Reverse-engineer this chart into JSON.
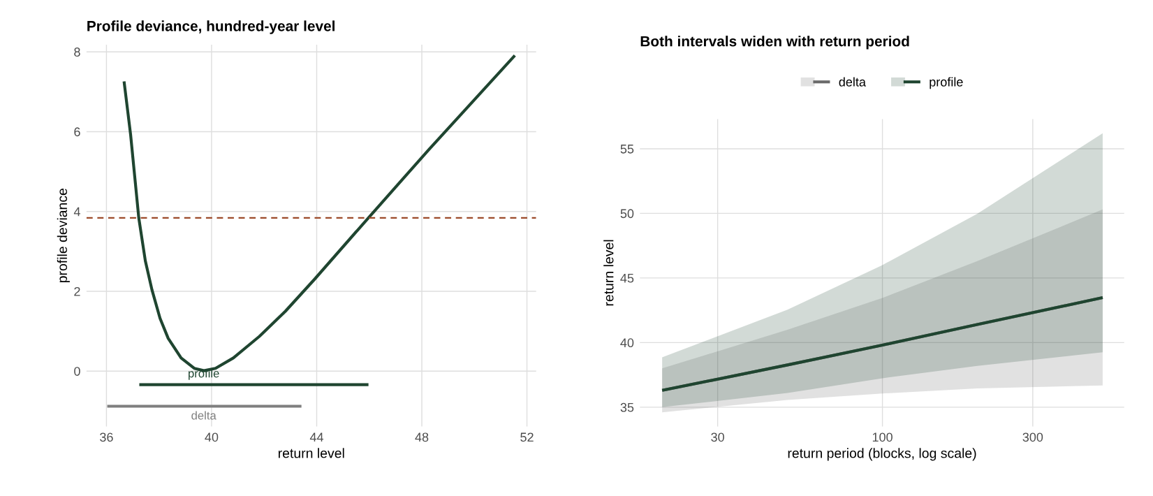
{
  "chart_data": [
    {
      "type": "line",
      "title": "Profile deviance, hundred-year level",
      "xlabel": "return level",
      "ylabel": "profile deviance",
      "xlim": [
        35.24,
        52.35
      ],
      "ylim": [
        -1.39,
        8.18
      ],
      "xticks": [
        36,
        40,
        44,
        48,
        52
      ],
      "yticks": [
        0,
        2,
        4,
        6,
        8
      ],
      "grid": true,
      "series": [
        {
          "color": "#1f4530",
          "x": [
            36.67,
            36.92,
            37.23,
            37.48,
            37.73,
            38.04,
            38.35,
            38.84,
            39.34,
            39.71,
            40.15,
            40.83,
            41.82,
            42.81,
            43.93,
            45.98,
            48.28,
            51.54
          ],
          "values": [
            7.26,
            5.92,
            3.84,
            2.76,
            2.04,
            1.32,
            0.82,
            0.33,
            0.07,
            0.01,
            0.07,
            0.33,
            0.87,
            1.5,
            2.31,
            3.85,
            5.56,
            7.91
          ]
        },
        {
          "color": "#1f4530",
          "x": [
            37.25,
            45.97
          ],
          "values": [
            -0.34,
            -0.34
          ]
        },
        {
          "color": "#7f7f7f",
          "x": [
            36.03,
            43.42
          ],
          "values": [
            -0.88,
            -0.88
          ]
        }
      ],
      "ref_lines": [
        {
          "axis": "y",
          "value": 3.84,
          "color": "#9c4a2a",
          "line_style": "dashed"
        }
      ],
      "annotations": [
        {
          "text": "profile",
          "x": 39.7,
          "y": -0.34
        },
        {
          "text": "delta",
          "x": 39.7,
          "y": -0.88
        }
      ]
    },
    {
      "type": "line",
      "title": "Both intervals widen with return period",
      "xlabel": "return period (blocks, log scale)",
      "ylabel": "return level",
      "log": "x",
      "xlim": [
        17,
        585
      ],
      "ylim": [
        33.5,
        57.3
      ],
      "xticks": [
        30,
        100,
        300
      ],
      "yticks": [
        35,
        40,
        45,
        50,
        55
      ],
      "grid": true,
      "legend": "top",
      "x": [
        20,
        50,
        100,
        200,
        500
      ],
      "series": [
        {
          "name": "delta",
          "type": "line",
          "color": "#6b6b6b",
          "values": [
            36.3,
            38.27,
            39.8,
            41.4,
            43.48
          ],
          "lower": [
            34.6,
            35.56,
            36.06,
            36.45,
            36.68
          ],
          "upper": [
            38.0,
            41.0,
            43.45,
            46.3,
            50.3
          ]
        },
        {
          "name": "profile",
          "type": "line",
          "color": "#1f4530",
          "values": [
            36.3,
            38.27,
            39.8,
            41.4,
            43.48
          ],
          "lower": [
            35.0,
            36.1,
            37.24,
            38.2,
            39.25
          ],
          "upper": [
            38.86,
            42.55,
            46.0,
            49.97,
            56.2
          ]
        }
      ]
    }
  ]
}
